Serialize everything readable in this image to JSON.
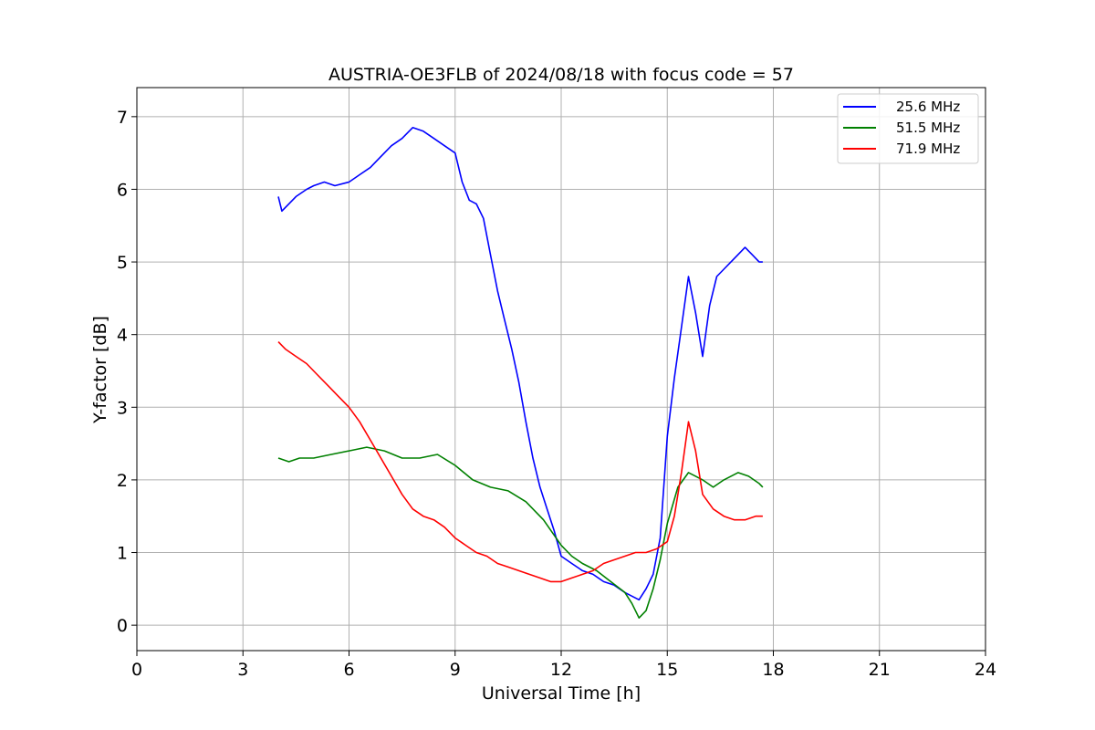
{
  "chart_data": {
    "type": "line",
    "title": "AUSTRIA-OE3FLB of 2024/08/18 with focus code = 57",
    "xlabel": "Universal Time [h]",
    "ylabel": "Y-factor [dB]",
    "xlim": [
      0,
      24
    ],
    "ylim": [
      -0.35,
      7.4
    ],
    "xticks": [
      0,
      3,
      6,
      9,
      12,
      15,
      18,
      21,
      24
    ],
    "yticks": [
      0,
      1,
      2,
      3,
      4,
      5,
      6,
      7
    ],
    "grid": true,
    "legend_position": "top-right",
    "series": [
      {
        "name": "25.6 MHz",
        "color": "#0000ff",
        "x": [
          4.0,
          4.1,
          4.3,
          4.5,
          4.8,
          5.0,
          5.3,
          5.6,
          6.0,
          6.3,
          6.6,
          6.9,
          7.2,
          7.5,
          7.8,
          8.1,
          8.4,
          8.7,
          9.0,
          9.2,
          9.4,
          9.6,
          9.8,
          10.0,
          10.2,
          10.4,
          10.6,
          10.8,
          11.0,
          11.2,
          11.4,
          11.6,
          11.8,
          12.0,
          12.3,
          12.6,
          12.9,
          13.2,
          13.5,
          13.8,
          14.0,
          14.2,
          14.4,
          14.6,
          14.8,
          15.0,
          15.2,
          15.4,
          15.6,
          15.8,
          16.0,
          16.2,
          16.4,
          16.6,
          16.8,
          17.0,
          17.2,
          17.4,
          17.6,
          17.7
        ],
        "y": [
          5.9,
          5.7,
          5.8,
          5.9,
          6.0,
          6.05,
          6.1,
          6.05,
          6.1,
          6.2,
          6.3,
          6.45,
          6.6,
          6.7,
          6.85,
          6.8,
          6.7,
          6.6,
          6.5,
          6.1,
          5.85,
          5.8,
          5.6,
          5.1,
          4.6,
          4.2,
          3.8,
          3.35,
          2.8,
          2.3,
          1.9,
          1.6,
          1.3,
          0.95,
          0.85,
          0.75,
          0.7,
          0.6,
          0.55,
          0.45,
          0.4,
          0.35,
          0.5,
          0.7,
          1.2,
          2.6,
          3.4,
          4.1,
          4.8,
          4.3,
          3.7,
          4.4,
          4.8,
          4.9,
          5.0,
          5.1,
          5.2,
          5.1,
          5.0,
          5.0
        ]
      },
      {
        "name": "51.5 MHz",
        "color": "#008000",
        "x": [
          4.0,
          4.3,
          4.6,
          5.0,
          5.5,
          6.0,
          6.5,
          7.0,
          7.5,
          8.0,
          8.5,
          9.0,
          9.5,
          10.0,
          10.5,
          11.0,
          11.5,
          12.0,
          12.3,
          12.6,
          13.0,
          13.4,
          13.8,
          14.0,
          14.2,
          14.4,
          14.6,
          14.8,
          15.0,
          15.3,
          15.6,
          16.0,
          16.3,
          16.6,
          17.0,
          17.3,
          17.6,
          17.7
        ],
        "y": [
          2.3,
          2.25,
          2.3,
          2.3,
          2.35,
          2.4,
          2.45,
          2.4,
          2.3,
          2.3,
          2.35,
          2.2,
          2.0,
          1.9,
          1.85,
          1.7,
          1.45,
          1.1,
          0.95,
          0.85,
          0.75,
          0.6,
          0.45,
          0.3,
          0.1,
          0.2,
          0.5,
          0.9,
          1.4,
          1.9,
          2.1,
          2.0,
          1.9,
          2.0,
          2.1,
          2.05,
          1.95,
          1.9
        ]
      },
      {
        "name": "71.9 MHz",
        "color": "#ff0000",
        "x": [
          4.0,
          4.2,
          4.5,
          4.8,
          5.1,
          5.4,
          5.7,
          6.0,
          6.3,
          6.6,
          6.9,
          7.2,
          7.5,
          7.8,
          8.1,
          8.4,
          8.7,
          9.0,
          9.3,
          9.6,
          9.9,
          10.2,
          10.5,
          10.8,
          11.1,
          11.4,
          11.7,
          12.0,
          12.3,
          12.6,
          12.9,
          13.2,
          13.5,
          13.8,
          14.1,
          14.4,
          14.7,
          15.0,
          15.2,
          15.4,
          15.6,
          15.8,
          16.0,
          16.3,
          16.6,
          16.9,
          17.2,
          17.5,
          17.7
        ],
        "y": [
          3.9,
          3.8,
          3.7,
          3.6,
          3.45,
          3.3,
          3.15,
          3.0,
          2.8,
          2.55,
          2.3,
          2.05,
          1.8,
          1.6,
          1.5,
          1.45,
          1.35,
          1.2,
          1.1,
          1.0,
          0.95,
          0.85,
          0.8,
          0.75,
          0.7,
          0.65,
          0.6,
          0.6,
          0.65,
          0.7,
          0.75,
          0.85,
          0.9,
          0.95,
          1.0,
          1.0,
          1.05,
          1.15,
          1.5,
          2.1,
          2.8,
          2.4,
          1.8,
          1.6,
          1.5,
          1.45,
          1.45,
          1.5,
          1.5
        ]
      }
    ]
  }
}
